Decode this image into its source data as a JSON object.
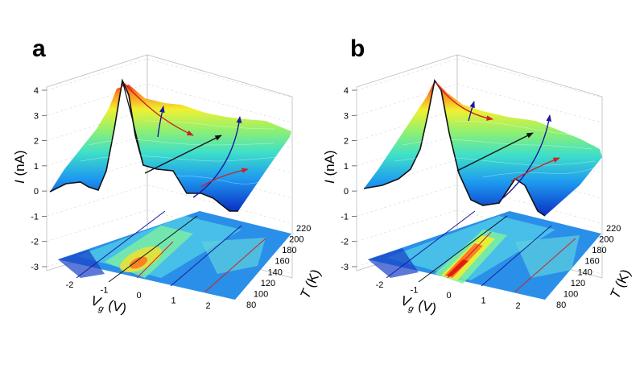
{
  "panels": [
    {
      "letter": "a",
      "z_label": "I",
      "z_unit": "(nA)",
      "x_label": "V",
      "x_sub": "g",
      "x_unit": "(V)",
      "y_label": "T",
      "y_unit": "(K)"
    },
    {
      "letter": "b",
      "z_label": "I",
      "z_unit": "(nA)",
      "x_label": "V",
      "x_sub": "g",
      "x_unit": "(V)",
      "y_label": "T",
      "y_unit": "(K)"
    }
  ],
  "chart_data": [
    {
      "type": "surface",
      "panel": "a",
      "x_ticks": [
        "-2",
        "-1",
        "0",
        "1",
        "2"
      ],
      "y_ticks": [
        "80",
        "100",
        "120",
        "140",
        "160",
        "180",
        "200",
        "220"
      ],
      "z_ticks": [
        "-3",
        "-2",
        "-1",
        "0",
        "1",
        "2",
        "3",
        "4"
      ],
      "xlim": [
        -2.5,
        2.5
      ],
      "ylim": [
        80,
        220
      ],
      "zlim": [
        -3,
        4
      ],
      "colormap": [
        "#0b2fc4",
        "#1e78f0",
        "#2ec8e8",
        "#5ee8b0",
        "#a8f060",
        "#f0f030",
        "#ff8a20",
        "#e81010"
      ],
      "arrows": [
        {
          "color": "#cc2222"
        },
        {
          "color": "#1a1a99"
        },
        {
          "color": "#111111"
        },
        {
          "color": "#1a1a99"
        },
        {
          "color": "#cc2222"
        }
      ]
    },
    {
      "type": "surface",
      "panel": "b",
      "x_ticks": [
        "-2",
        "-1",
        "0",
        "1",
        "2"
      ],
      "y_ticks": [
        "80",
        "100",
        "120",
        "140",
        "160",
        "180",
        "200",
        "220"
      ],
      "z_ticks": [
        "-3",
        "-2",
        "-1",
        "0",
        "1",
        "2",
        "3",
        "4"
      ],
      "xlim": [
        -2.5,
        2.5
      ],
      "ylim": [
        80,
        220
      ],
      "zlim": [
        -3,
        4
      ],
      "colormap": [
        "#0b2fc4",
        "#1e78f0",
        "#2ec8e8",
        "#5ee8b0",
        "#a8f060",
        "#f0f030",
        "#ff8a20",
        "#e81010"
      ],
      "arrows": [
        {
          "color": "#cc2222"
        },
        {
          "color": "#1a1a99"
        },
        {
          "color": "#111111"
        },
        {
          "color": "#1a1a99"
        },
        {
          "color": "#cc2222"
        }
      ]
    }
  ]
}
